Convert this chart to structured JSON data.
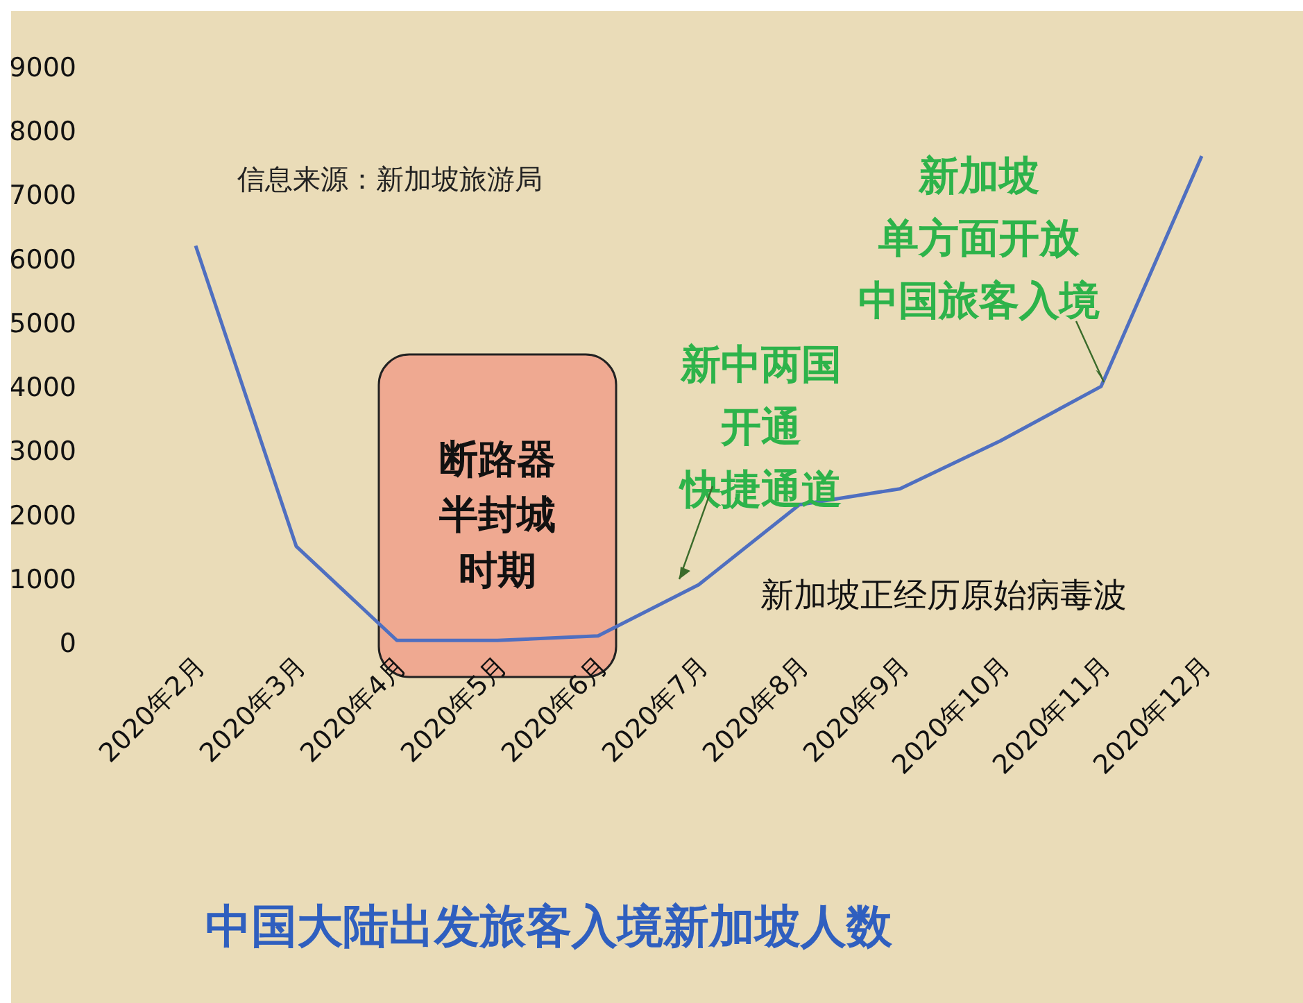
{
  "chart_data": {
    "type": "line",
    "title": "中国大陆出发旅客入境新加坡人数",
    "categories": [
      "2020年2月",
      "2020年3月",
      "2020年4月",
      "2020年5月",
      "2020年6月",
      "2020年7月",
      "2020年8月",
      "2020年9月",
      "2020年10月",
      "2020年11月",
      "2020年12月"
    ],
    "series": [
      {
        "color": "#4f6fc0",
        "values": [
          6200,
          1500,
          30,
          30,
          100,
          900,
          2150,
          2400,
          3150,
          4000,
          7600
        ]
      }
    ],
    "ylim": [
      0,
      9000
    ],
    "yticks": [
      0,
      1000,
      2000,
      3000,
      4000,
      5000,
      6000,
      7000,
      8000,
      9000
    ],
    "grid": false,
    "legend": false,
    "marker": "none",
    "line_style": "solid",
    "bands": [
      {
        "axis": "x",
        "from": "2020年4月",
        "to": "2020年6月",
        "label": "断路器半封城时期",
        "color": "#f0a08a"
      }
    ],
    "annotations": [
      "信息来源：新加坡旅游局",
      "新加坡正经历原始病毒波",
      {
        "text": "新中两国开通快捷通道",
        "x": "2020年7月",
        "y": 900
      },
      {
        "text": "新加坡单方面开放中国旅客入境",
        "x": "2020年11月",
        "y": 4000
      }
    ]
  }
}
